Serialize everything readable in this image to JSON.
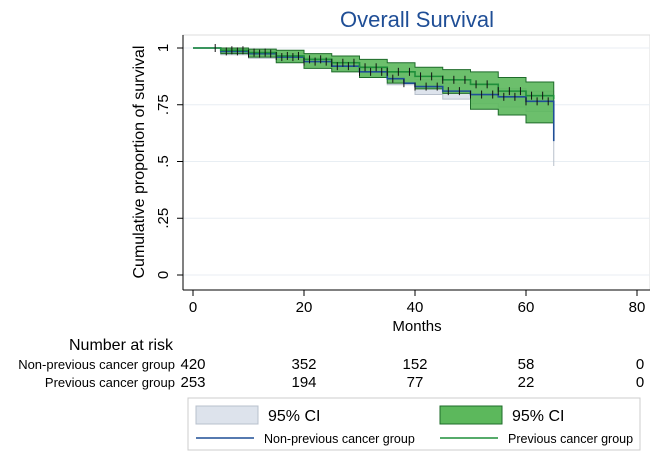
{
  "chart_data": {
    "type": "line",
    "title": "Overall Survival",
    "xlabel": "Months",
    "ylabel": "Cumulative proportion of survival",
    "xlim": [
      0,
      80
    ],
    "ylim": [
      0,
      1
    ],
    "x_ticks": [
      0,
      20,
      40,
      60,
      80
    ],
    "y_ticks": [
      0,
      0.25,
      0.5,
      0.75,
      1
    ],
    "y_tick_labels": [
      "0",
      ".25",
      ".5",
      ".75",
      "1"
    ],
    "grid": true,
    "legend_placement": "bottom",
    "series": [
      {
        "name": "Non-previous cancer group",
        "color": "#1f4e96",
        "ci_label": "95% CI",
        "ci_color": "#dde3ec",
        "points": [
          [
            0,
            1
          ],
          [
            5,
            0.985
          ],
          [
            10,
            0.975
          ],
          [
            15,
            0.96
          ],
          [
            20,
            0.94
          ],
          [
            25,
            0.92
          ],
          [
            30,
            0.895
          ],
          [
            35,
            0.865
          ],
          [
            38,
            0.845
          ],
          [
            40,
            0.83
          ],
          [
            45,
            0.81
          ],
          [
            50,
            0.795
          ],
          [
            55,
            0.785
          ],
          [
            60,
            0.765
          ],
          [
            65,
            0.76
          ],
          [
            65,
            0.59
          ]
        ],
        "ci_upper": [
          [
            0,
            1
          ],
          [
            5,
            0.995
          ],
          [
            10,
            0.988
          ],
          [
            15,
            0.975
          ],
          [
            20,
            0.958
          ],
          [
            25,
            0.94
          ],
          [
            30,
            0.918
          ],
          [
            35,
            0.892
          ],
          [
            40,
            0.862
          ],
          [
            45,
            0.845
          ],
          [
            50,
            0.835
          ],
          [
            55,
            0.822
          ],
          [
            60,
            0.81
          ],
          [
            65,
            0.8
          ]
        ],
        "ci_lower": [
          [
            0,
            1
          ],
          [
            5,
            0.97
          ],
          [
            10,
            0.955
          ],
          [
            15,
            0.94
          ],
          [
            20,
            0.92
          ],
          [
            25,
            0.897
          ],
          [
            30,
            0.87
          ],
          [
            35,
            0.838
          ],
          [
            40,
            0.795
          ],
          [
            45,
            0.775
          ],
          [
            50,
            0.755
          ],
          [
            55,
            0.74
          ],
          [
            60,
            0.72
          ],
          [
            65,
            0.695
          ],
          [
            65,
            0.48
          ]
        ]
      },
      {
        "name": "Previous cancer group",
        "color": "#1e8f3a",
        "ci_label": "95% CI",
        "ci_color": "#5cb85c",
        "points": [
          [
            0,
            1
          ],
          [
            5,
            0.99
          ],
          [
            10,
            0.98
          ],
          [
            15,
            0.965
          ],
          [
            20,
            0.95
          ],
          [
            25,
            0.935
          ],
          [
            30,
            0.915
          ],
          [
            35,
            0.895
          ],
          [
            40,
            0.875
          ],
          [
            45,
            0.86
          ],
          [
            50,
            0.84
          ],
          [
            55,
            0.81
          ],
          [
            60,
            0.79
          ],
          [
            65,
            0.775
          ]
        ],
        "ci_upper": [
          [
            0,
            1
          ],
          [
            5,
            1
          ],
          [
            10,
            0.995
          ],
          [
            15,
            0.99
          ],
          [
            20,
            0.975
          ],
          [
            25,
            0.965
          ],
          [
            30,
            0.95
          ],
          [
            35,
            0.935
          ],
          [
            40,
            0.915
          ],
          [
            45,
            0.905
          ],
          [
            50,
            0.895
          ],
          [
            55,
            0.87
          ],
          [
            60,
            0.85
          ],
          [
            65,
            0.845
          ]
        ],
        "ci_lower": [
          [
            0,
            1
          ],
          [
            5,
            0.975
          ],
          [
            10,
            0.96
          ],
          [
            15,
            0.935
          ],
          [
            20,
            0.91
          ],
          [
            25,
            0.895
          ],
          [
            30,
            0.87
          ],
          [
            35,
            0.845
          ],
          [
            40,
            0.82
          ],
          [
            45,
            0.8
          ],
          [
            50,
            0.73
          ],
          [
            55,
            0.705
          ],
          [
            60,
            0.67
          ],
          [
            65,
            0.645
          ]
        ]
      }
    ],
    "censor_marks": {
      "Non-previous cancer group": [
        6,
        8,
        10,
        12,
        14,
        16,
        18,
        20,
        22,
        24,
        26,
        28,
        30,
        32,
        34,
        36,
        38,
        40,
        42,
        44,
        46,
        48,
        50,
        52,
        54,
        56,
        58,
        60,
        62,
        64
      ],
      "Previous cancer group": [
        4,
        7,
        9,
        11,
        13,
        15,
        17,
        19,
        21,
        23,
        25,
        27,
        29,
        31,
        33,
        35,
        37,
        39,
        41,
        43,
        45,
        47,
        49,
        51,
        53,
        55,
        57,
        59,
        61,
        63
      ]
    }
  },
  "risk_table": {
    "title": "Number at risk",
    "rows": [
      {
        "label": "Non-previous cancer group",
        "values": [
          "420",
          "352",
          "152",
          "58",
          "0"
        ]
      },
      {
        "label": "Previous cancer group",
        "values": [
          "253",
          "194",
          "77",
          "22",
          "0"
        ]
      }
    ]
  },
  "legend": {
    "items": [
      {
        "label": "95% CI",
        "kind": "ci-fill",
        "color": "#dde3ec",
        "stroke": "#b8c0cc"
      },
      {
        "label": "95% CI",
        "kind": "ci-fill",
        "color": "#5cb85c",
        "stroke": "#1e6b2a"
      },
      {
        "label": "Non-previous cancer group",
        "kind": "line",
        "color": "#1f4e96"
      },
      {
        "label": "Previous cancer group",
        "kind": "line",
        "color": "#1e8f3a"
      }
    ]
  }
}
